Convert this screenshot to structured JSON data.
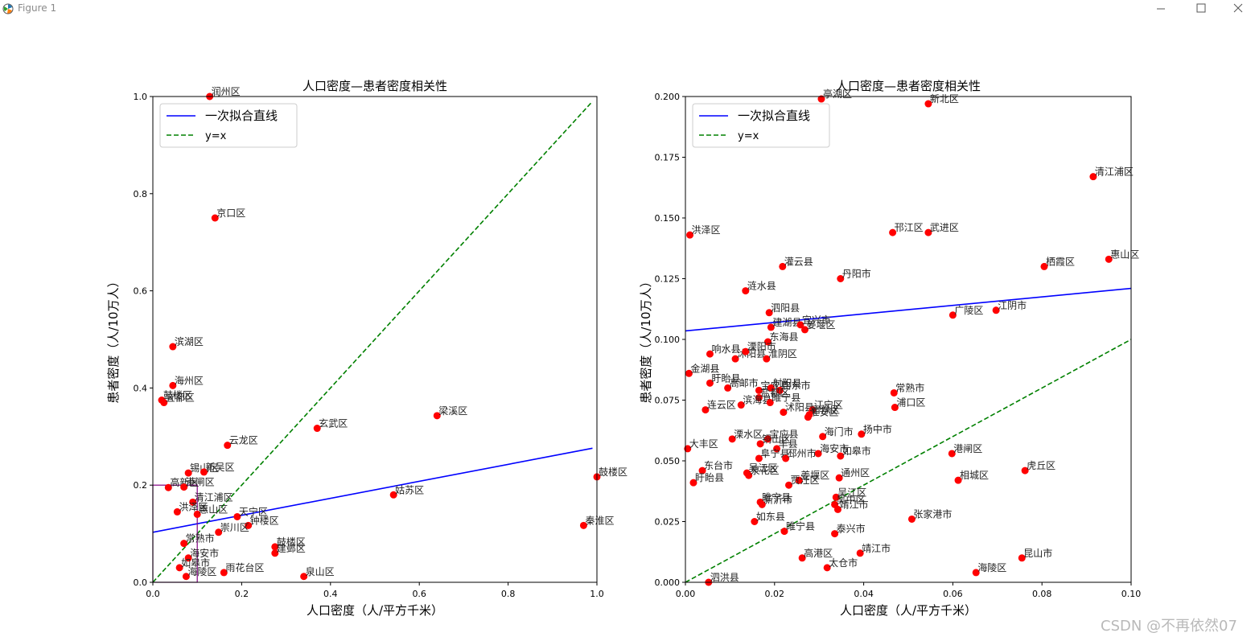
{
  "window": {
    "title": "Figure 1",
    "icon": "matplotlib-icon",
    "controls": [
      "minimize-icon",
      "maximize-icon",
      "close-icon"
    ]
  },
  "watermark": "CSDN @不再依然07",
  "colors": {
    "points": "#ff0000",
    "fit": "#0000ff",
    "identity": "#008000",
    "zoom_box": "#800080"
  },
  "chart_data": [
    {
      "type": "scatter",
      "title": "人口密度—患者密度相关性",
      "xlabel": "人口密度（人/平方千米）",
      "ylabel": "患者密度（人/10万人）",
      "xlim": [
        0,
        1.0
      ],
      "ylim": [
        0,
        1.0
      ],
      "xticks": [
        "0.0",
        "0.2",
        "0.4",
        "0.6",
        "0.8",
        "1.0"
      ],
      "yticks": [
        "0.0",
        "0.2",
        "0.4",
        "0.6",
        "0.8",
        "1.0"
      ],
      "legend": [
        "一次拟合直线",
        "y=x"
      ],
      "legend_position": "upper-left",
      "grid": false,
      "fit_line": {
        "x": [
          0,
          0.99
        ],
        "y": [
          0.103,
          0.276
        ]
      },
      "identity_line": {
        "x": [
          0,
          0.99
        ],
        "y": [
          0,
          0.99
        ]
      },
      "zoom_box": {
        "x": [
          0,
          0.1
        ],
        "y": [
          0,
          0.2
        ]
      },
      "points": [
        {
          "x": 0.128,
          "y": 1.0,
          "label": "润州区"
        },
        {
          "x": 0.14,
          "y": 0.75,
          "label": "京口区"
        },
        {
          "x": 0.045,
          "y": 0.485,
          "label": "滨湖区"
        },
        {
          "x": 0.045,
          "y": 0.405,
          "label": "海州区"
        },
        {
          "x": 0.02,
          "y": 0.375,
          "label": "鼓楼区"
        },
        {
          "x": 0.025,
          "y": 0.37,
          "label": "宜都区"
        },
        {
          "x": 0.37,
          "y": 0.317,
          "label": "玄武区"
        },
        {
          "x": 0.64,
          "y": 0.343,
          "label": "梁溪区"
        },
        {
          "x": 0.168,
          "y": 0.282,
          "label": "云龙区"
        },
        {
          "x": 0.08,
          "y": 0.225,
          "label": "锡山区"
        },
        {
          "x": 0.115,
          "y": 0.227,
          "label": "新吴区"
        },
        {
          "x": 0.035,
          "y": 0.195,
          "label": "高新区"
        },
        {
          "x": 0.07,
          "y": 0.196,
          "label": "港闸区"
        },
        {
          "x": 0.09,
          "y": 0.165,
          "label": "清江浦区"
        },
        {
          "x": 0.055,
          "y": 0.145,
          "label": "洪泽区"
        },
        {
          "x": 0.1,
          "y": 0.14,
          "label": "惠山区"
        },
        {
          "x": 0.19,
          "y": 0.135,
          "label": "天宁区"
        },
        {
          "x": 0.215,
          "y": 0.117,
          "label": "钟楼区"
        },
        {
          "x": 0.148,
          "y": 0.103,
          "label": "崇川区"
        },
        {
          "x": 0.542,
          "y": 0.18,
          "label": "姑苏区"
        },
        {
          "x": 0.275,
          "y": 0.073,
          "label": "鼓楼区"
        },
        {
          "x": 0.275,
          "y": 0.06,
          "label": "建邺区"
        },
        {
          "x": 0.16,
          "y": 0.02,
          "label": "雨花台区"
        },
        {
          "x": 0.34,
          "y": 0.012,
          "label": "泉山区"
        },
        {
          "x": 0.97,
          "y": 0.117,
          "label": "秦淮区"
        },
        {
          "x": 1.0,
          "y": 0.217,
          "label": "鼓楼区"
        },
        {
          "x": 0.07,
          "y": 0.08,
          "label": "常熟市"
        },
        {
          "x": 0.08,
          "y": 0.05,
          "label": "海安市"
        },
        {
          "x": 0.06,
          "y": 0.03,
          "label": "如皋市"
        },
        {
          "x": 0.075,
          "y": 0.012,
          "label": "海陵区"
        }
      ]
    },
    {
      "type": "scatter",
      "title": "人口密度—患者密度相关性",
      "xlabel": "人口密度（人/平方千米）",
      "ylabel": "患者密度（人/10万人）",
      "xlim": [
        0,
        0.1
      ],
      "ylim": [
        0,
        0.2
      ],
      "xticks": [
        "0.00",
        "0.02",
        "0.04",
        "0.06",
        "0.08",
        "0.10"
      ],
      "yticks": [
        "0.000",
        "0.025",
        "0.050",
        "0.075",
        "0.100",
        "0.125",
        "0.150",
        "0.175",
        "0.200"
      ],
      "legend": [
        "一次拟合直线",
        "y=x"
      ],
      "legend_position": "upper-left",
      "grid": false,
      "fit_line": {
        "x": [
          0,
          0.1
        ],
        "y": [
          0.1035,
          0.121
        ]
      },
      "identity_line": {
        "x": [
          0,
          0.1
        ],
        "y": [
          0,
          0.1
        ]
      },
      "points": [
        {
          "x": 0.0305,
          "y": 0.199,
          "label": "亭湖区"
        },
        {
          "x": 0.0545,
          "y": 0.197,
          "label": "新北区"
        },
        {
          "x": 0.0915,
          "y": 0.167,
          "label": "清江浦区"
        },
        {
          "x": 0.001,
          "y": 0.143,
          "label": "洪泽区"
        },
        {
          "x": 0.0465,
          "y": 0.144,
          "label": "邗江区"
        },
        {
          "x": 0.0545,
          "y": 0.144,
          "label": "武进区"
        },
        {
          "x": 0.0805,
          "y": 0.13,
          "label": "栖霞区"
        },
        {
          "x": 0.095,
          "y": 0.133,
          "label": "惠山区"
        },
        {
          "x": 0.0218,
          "y": 0.13,
          "label": "灌云县"
        },
        {
          "x": 0.0348,
          "y": 0.125,
          "label": "丹阳市"
        },
        {
          "x": 0.0135,
          "y": 0.12,
          "label": "涟水县"
        },
        {
          "x": 0.0188,
          "y": 0.111,
          "label": "泗阳县"
        },
        {
          "x": 0.06,
          "y": 0.11,
          "label": "广陵区"
        },
        {
          "x": 0.0697,
          "y": 0.112,
          "label": "江阴市"
        },
        {
          "x": 0.0192,
          "y": 0.105,
          "label": "建湖县"
        },
        {
          "x": 0.0258,
          "y": 0.106,
          "label": "宜兴市"
        },
        {
          "x": 0.0268,
          "y": 0.104,
          "label": "姜堰区"
        },
        {
          "x": 0.0185,
          "y": 0.099,
          "label": "东海县"
        },
        {
          "x": 0.0055,
          "y": 0.094,
          "label": "响水县"
        },
        {
          "x": 0.0112,
          "y": 0.092,
          "label": "沭阳县"
        },
        {
          "x": 0.0135,
          "y": 0.095,
          "label": "溧阳市"
        },
        {
          "x": 0.0182,
          "y": 0.092,
          "label": "淮阴区"
        },
        {
          "x": 0.0008,
          "y": 0.086,
          "label": "金湖县"
        },
        {
          "x": 0.0055,
          "y": 0.082,
          "label": "盱眙县"
        },
        {
          "x": 0.0095,
          "y": 0.08,
          "label": "高邮市"
        },
        {
          "x": 0.0165,
          "y": 0.079,
          "label": "宝应县"
        },
        {
          "x": 0.0192,
          "y": 0.08,
          "label": "射阳县"
        },
        {
          "x": 0.0212,
          "y": 0.079,
          "label": "启东市"
        },
        {
          "x": 0.0165,
          "y": 0.076,
          "label": "盐都区"
        },
        {
          "x": 0.0468,
          "y": 0.078,
          "label": "常熟市"
        },
        {
          "x": 0.0045,
          "y": 0.071,
          "label": "连云区"
        },
        {
          "x": 0.0125,
          "y": 0.073,
          "label": "滨海县"
        },
        {
          "x": 0.019,
          "y": 0.074,
          "label": "睢宁县"
        },
        {
          "x": 0.022,
          "y": 0.07,
          "label": "沭阳县"
        },
        {
          "x": 0.0285,
          "y": 0.071,
          "label": "江宁区"
        },
        {
          "x": 0.0275,
          "y": 0.068,
          "label": "淮安区"
        },
        {
          "x": 0.0278,
          "y": 0.069,
          "label": "宿豫区"
        },
        {
          "x": 0.047,
          "y": 0.072,
          "label": "浦口区"
        },
        {
          "x": 0.0308,
          "y": 0.06,
          "label": "海门市"
        },
        {
          "x": 0.0395,
          "y": 0.061,
          "label": "扬中市"
        },
        {
          "x": 0.0105,
          "y": 0.059,
          "label": "溧水区"
        },
        {
          "x": 0.0185,
          "y": 0.059,
          "label": "宝应县"
        },
        {
          "x": 0.0168,
          "y": 0.057,
          "label": "铜山区"
        },
        {
          "x": 0.0205,
          "y": 0.055,
          "label": "丰县"
        },
        {
          "x": 0.0005,
          "y": 0.055,
          "label": "大丰区"
        },
        {
          "x": 0.0298,
          "y": 0.053,
          "label": "海安市"
        },
        {
          "x": 0.0348,
          "y": 0.052,
          "label": "如皋市"
        },
        {
          "x": 0.0598,
          "y": 0.053,
          "label": "港闸区"
        },
        {
          "x": 0.0165,
          "y": 0.051,
          "label": "阜宁县"
        },
        {
          "x": 0.0225,
          "y": 0.051,
          "label": "邳州市"
        },
        {
          "x": 0.0038,
          "y": 0.046,
          "label": "东台市"
        },
        {
          "x": 0.0138,
          "y": 0.045,
          "label": "吴江区"
        },
        {
          "x": 0.0142,
          "y": 0.044,
          "label": "泉花区"
        },
        {
          "x": 0.0255,
          "y": 0.042,
          "label": "姜堰区"
        },
        {
          "x": 0.0345,
          "y": 0.043,
          "label": "通州区"
        },
        {
          "x": 0.0762,
          "y": 0.046,
          "label": "虎丘区"
        },
        {
          "x": 0.0612,
          "y": 0.042,
          "label": "相城区"
        },
        {
          "x": 0.0018,
          "y": 0.041,
          "label": "盱眙县"
        },
        {
          "x": 0.0232,
          "y": 0.04,
          "label": "贾汪区"
        },
        {
          "x": 0.0338,
          "y": 0.035,
          "label": "吴江区"
        },
        {
          "x": 0.0168,
          "y": 0.033,
          "label": "睢宁县"
        },
        {
          "x": 0.0172,
          "y": 0.032,
          "label": "新沂市"
        },
        {
          "x": 0.0335,
          "y": 0.032,
          "label": "吴中区"
        },
        {
          "x": 0.0342,
          "y": 0.03,
          "label": "靖江市"
        },
        {
          "x": 0.0155,
          "y": 0.025,
          "label": "如东县"
        },
        {
          "x": 0.0508,
          "y": 0.026,
          "label": "张家港市"
        },
        {
          "x": 0.0222,
          "y": 0.021,
          "label": "睢宁县"
        },
        {
          "x": 0.0335,
          "y": 0.02,
          "label": "泰兴市"
        },
        {
          "x": 0.0262,
          "y": 0.01,
          "label": "高港区"
        },
        {
          "x": 0.0392,
          "y": 0.012,
          "label": "靖江市"
        },
        {
          "x": 0.0318,
          "y": 0.006,
          "label": "太仓市"
        },
        {
          "x": 0.0755,
          "y": 0.01,
          "label": "昆山市"
        },
        {
          "x": 0.0652,
          "y": 0.004,
          "label": "海陵区"
        },
        {
          "x": 0.0052,
          "y": 0.0,
          "label": "泗洪县"
        }
      ]
    }
  ]
}
